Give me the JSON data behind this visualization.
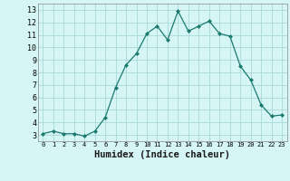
{
  "x": [
    0,
    1,
    2,
    3,
    4,
    5,
    6,
    7,
    8,
    9,
    10,
    11,
    12,
    13,
    14,
    15,
    16,
    17,
    18,
    19,
    20,
    21,
    22,
    23
  ],
  "y": [
    3.1,
    3.3,
    3.1,
    3.1,
    2.9,
    3.3,
    4.4,
    6.8,
    8.6,
    9.5,
    11.1,
    11.7,
    10.6,
    12.9,
    11.3,
    11.7,
    12.1,
    11.1,
    10.9,
    8.5,
    7.4,
    5.4,
    4.5,
    4.6
  ],
  "xlabel": "Humidex (Indice chaleur)",
  "ylim": [
    2.5,
    13.5
  ],
  "xlim": [
    -0.5,
    23.5
  ],
  "yticks": [
    3,
    4,
    5,
    6,
    7,
    8,
    9,
    10,
    11,
    12,
    13
  ],
  "xticks": [
    0,
    1,
    2,
    3,
    4,
    5,
    6,
    7,
    8,
    9,
    10,
    11,
    12,
    13,
    14,
    15,
    16,
    17,
    18,
    19,
    20,
    21,
    22,
    23
  ],
  "line_color": "#1a7a6e",
  "marker": "D",
  "marker_size": 2.0,
  "bg_color": "#d6f5f5",
  "grid_color": "#aad8d8",
  "xlabel_fontsize": 7.5,
  "tick_fontsize_x": 5.0,
  "tick_fontsize_y": 6.0
}
